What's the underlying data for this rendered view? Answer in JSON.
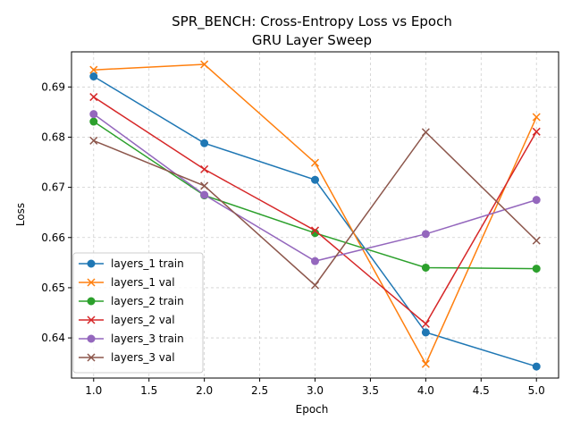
{
  "chart_data": {
    "type": "line",
    "title": "SPR_BENCH: Cross-Entropy Loss vs Epoch",
    "subtitle": "GRU Layer Sweep",
    "xlabel": "Epoch",
    "ylabel": "Loss",
    "xlim": [
      0.8,
      5.2
    ],
    "ylim": [
      0.632,
      0.697
    ],
    "xticks": [
      "1.0",
      "1.5",
      "2.0",
      "2.5",
      "3.0",
      "3.5",
      "4.0",
      "4.5",
      "5.0"
    ],
    "yticks": [
      "0.64",
      "0.65",
      "0.66",
      "0.67",
      "0.68",
      "0.69"
    ],
    "grid": true,
    "legend_position": "lower-left",
    "x": [
      1,
      2,
      3,
      4,
      5
    ],
    "series": [
      {
        "name": "layers_1 train",
        "color": "#1f77b4",
        "marker": "circle",
        "values": [
          0.6921,
          0.6788,
          0.6715,
          0.6411,
          0.6343
        ]
      },
      {
        "name": "layers_1 val",
        "color": "#ff7f0e",
        "marker": "x",
        "values": [
          0.6934,
          0.6945,
          0.6749,
          0.6348,
          0.684
        ]
      },
      {
        "name": "layers_2 train",
        "color": "#2ca02c",
        "marker": "circle",
        "values": [
          0.6831,
          0.6684,
          0.6609,
          0.654,
          0.6538
        ]
      },
      {
        "name": "layers_2 val",
        "color": "#d62728",
        "marker": "x",
        "values": [
          0.688,
          0.6736,
          0.6614,
          0.6428,
          0.6811
        ]
      },
      {
        "name": "layers_3 train",
        "color": "#9467bd",
        "marker": "circle",
        "values": [
          0.6846,
          0.6685,
          0.6553,
          0.6607,
          0.6675
        ]
      },
      {
        "name": "layers_3 val",
        "color": "#8c564b",
        "marker": "x",
        "values": [
          0.6793,
          0.6703,
          0.6505,
          0.681,
          0.6594
        ]
      }
    ]
  }
}
